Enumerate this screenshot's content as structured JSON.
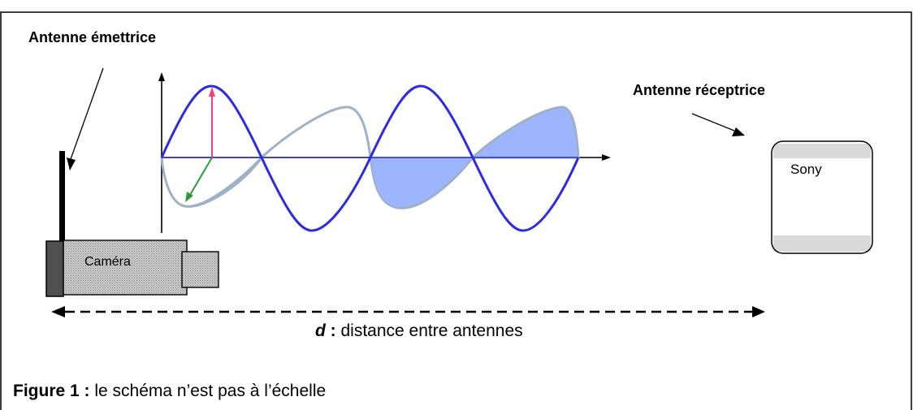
{
  "labels": {
    "emitting_antenna": "Antenne émettrice",
    "receiving_antenna": "Antenne réceptrice",
    "camera": "Caméra",
    "tv_brand": "Sony"
  },
  "distance": {
    "symbol": "d",
    "colon": " :",
    "text": " distance entre antennes"
  },
  "caption": {
    "figure": "Figure 1 :",
    "text": " le schéma n’est pas à l’échelle"
  },
  "colors": {
    "wave_primary": "#2b2be6",
    "wave_secondary": "#9db2c6",
    "wave_fill": "#9db4ff",
    "vector_up": "#ff3a7a",
    "vector_down": "#2e9a3a",
    "camera_body": "#bdbdbd",
    "camera_back": "#505050",
    "tv_band": "#d9d9d9"
  }
}
